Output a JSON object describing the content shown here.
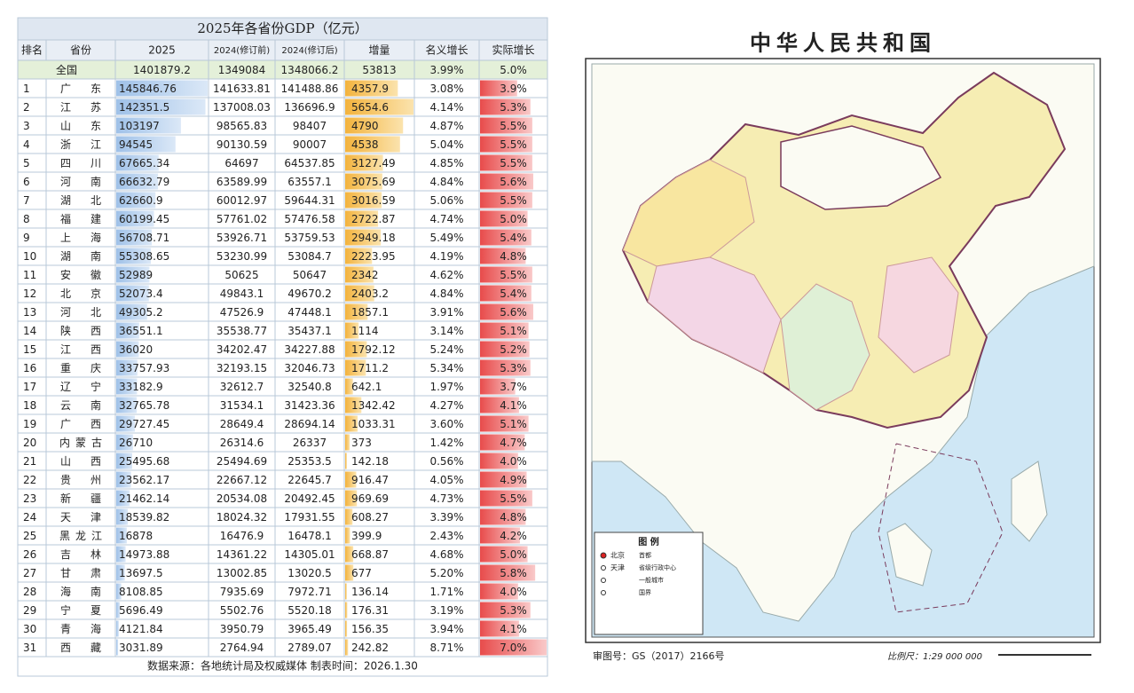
{
  "table": {
    "title": "2025年各省份GDP（亿元）",
    "header": [
      "排名",
      "省份",
      "2025",
      "2024(修订前)",
      "2024(修订后)",
      "增量",
      "名义增长",
      "实际增长"
    ],
    "national": [
      "全国",
      "1401879.2",
      "1349084",
      "1348066.2",
      "53813",
      "3.99%",
      "5.0%"
    ],
    "rows": [
      [
        "1",
        "广东",
        "145846.76",
        "141633.81",
        "141488.86",
        "4357.9",
        "3.08%",
        "3.9%"
      ],
      [
        "2",
        "江苏",
        "142351.5",
        "137008.03",
        "136696.9",
        "5654.6",
        "4.14%",
        "5.3%"
      ],
      [
        "3",
        "山东",
        "103197",
        "98565.83",
        "98407",
        "4790",
        "4.87%",
        "5.5%"
      ],
      [
        "4",
        "浙江",
        "94545",
        "90130.59",
        "90007",
        "4538",
        "5.04%",
        "5.5%"
      ],
      [
        "5",
        "四川",
        "67665.34",
        "64697",
        "64537.85",
        "3127.49",
        "4.85%",
        "5.5%"
      ],
      [
        "6",
        "河南",
        "66632.79",
        "63589.99",
        "63557.1",
        "3075.69",
        "4.84%",
        "5.6%"
      ],
      [
        "7",
        "湖北",
        "62660.9",
        "60012.97",
        "59644.31",
        "3016.59",
        "5.06%",
        "5.5%"
      ],
      [
        "8",
        "福建",
        "60199.45",
        "57761.02",
        "57476.58",
        "2722.87",
        "4.74%",
        "5.0%"
      ],
      [
        "9",
        "上海",
        "56708.71",
        "53926.71",
        "53759.53",
        "2949.18",
        "5.49%",
        "5.4%"
      ],
      [
        "10",
        "湖南",
        "55308.65",
        "53230.99",
        "53084.7",
        "2223.95",
        "4.19%",
        "4.8%"
      ],
      [
        "11",
        "安徽",
        "52989",
        "50625",
        "50647",
        "2342",
        "4.62%",
        "5.5%"
      ],
      [
        "12",
        "北京",
        "52073.4",
        "49843.1",
        "49670.2",
        "2403.2",
        "4.84%",
        "5.4%"
      ],
      [
        "13",
        "河北",
        "49305.2",
        "47526.9",
        "47448.1",
        "1857.1",
        "3.91%",
        "5.6%"
      ],
      [
        "14",
        "陕西",
        "36551.1",
        "35538.77",
        "35437.1",
        "1114",
        "3.14%",
        "5.1%"
      ],
      [
        "15",
        "江西",
        "36020",
        "34202.47",
        "34227.88",
        "1792.12",
        "5.24%",
        "5.2%"
      ],
      [
        "16",
        "重庆",
        "33757.93",
        "32193.15",
        "32046.73",
        "1711.2",
        "5.34%",
        "5.3%"
      ],
      [
        "17",
        "辽宁",
        "33182.9",
        "32612.7",
        "32540.8",
        "642.1",
        "1.97%",
        "3.7%"
      ],
      [
        "18",
        "云南",
        "32765.78",
        "31534.1",
        "31423.36",
        "1342.42",
        "4.27%",
        "4.1%"
      ],
      [
        "19",
        "广西",
        "29727.45",
        "28649.4",
        "28694.14",
        "1033.31",
        "3.60%",
        "5.1%"
      ],
      [
        "20",
        "内蒙古",
        "26710",
        "26314.6",
        "26337",
        "373",
        "1.42%",
        "4.7%"
      ],
      [
        "21",
        "山西",
        "25495.68",
        "25494.69",
        "25353.5",
        "142.18",
        "0.56%",
        "4.0%"
      ],
      [
        "22",
        "贵州",
        "23562.17",
        "22667.12",
        "22645.7",
        "916.47",
        "4.05%",
        "4.9%"
      ],
      [
        "23",
        "新疆",
        "21462.14",
        "20534.08",
        "20492.45",
        "969.69",
        "4.73%",
        "5.5%"
      ],
      [
        "24",
        "天津",
        "18539.82",
        "18024.32",
        "17931.55",
        "608.27",
        "3.39%",
        "4.8%"
      ],
      [
        "25",
        "黑龙江",
        "16878",
        "16476.9",
        "16478.1",
        "399.9",
        "2.43%",
        "4.2%"
      ],
      [
        "26",
        "吉林",
        "14973.88",
        "14361.22",
        "14305.01",
        "668.87",
        "4.68%",
        "5.0%"
      ],
      [
        "27",
        "甘肃",
        "13697.5",
        "13002.85",
        "13020.5",
        "677",
        "5.20%",
        "5.8%"
      ],
      [
        "28",
        "海南",
        "8108.85",
        "7935.69",
        "7972.71",
        "136.14",
        "1.71%",
        "4.0%"
      ],
      [
        "29",
        "宁夏",
        "5696.49",
        "5502.76",
        "5520.18",
        "176.31",
        "3.19%",
        "5.3%"
      ],
      [
        "30",
        "青海",
        "4121.84",
        "3950.79",
        "3965.49",
        "156.35",
        "3.94%",
        "4.1%"
      ],
      [
        "31",
        "西藏",
        "3031.89",
        "2764.94",
        "2789.07",
        "242.82",
        "8.71%",
        "7.0%"
      ]
    ],
    "footer": "数据来源：各地统计局及权威媒体    制表时间：2026.1.30"
  },
  "map": {
    "title": "中华人民共和国",
    "legend_title": "图 例",
    "legend": [
      [
        "北京",
        "首都"
      ],
      [
        "天津",
        "省级行政中心"
      ],
      [
        "",
        "一般城市"
      ],
      [
        "",
        "国界"
      ]
    ],
    "approval": "审图号：GS（2017）2166号",
    "scale": "比例尺：1:29 000 000"
  }
}
